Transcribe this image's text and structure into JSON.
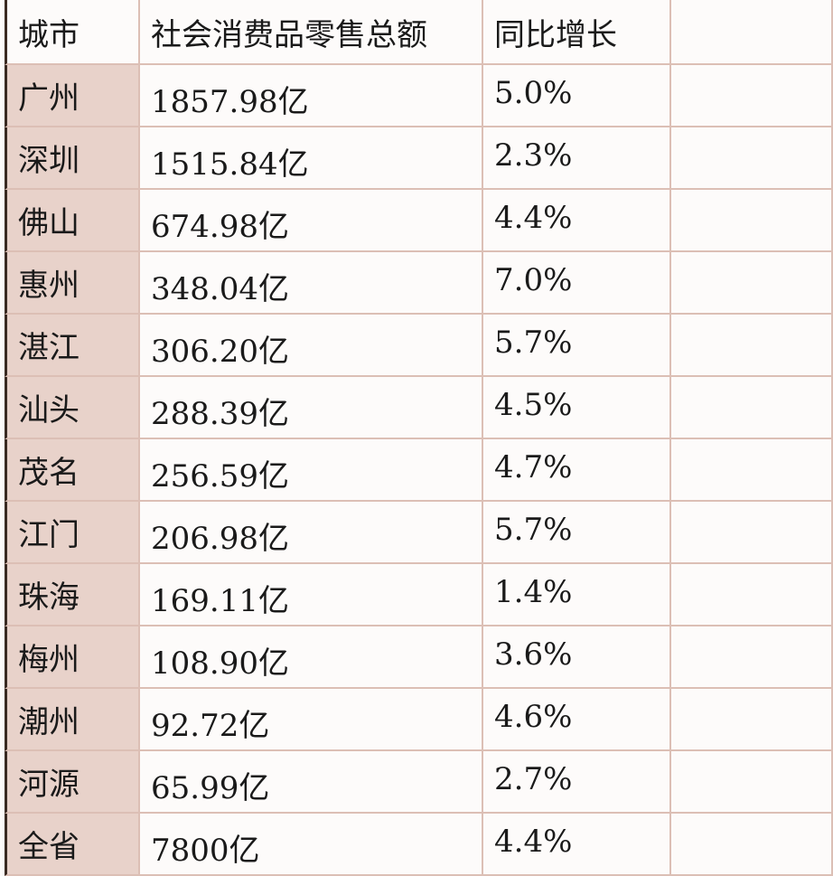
{
  "table": {
    "header": [
      "城市",
      "社会消费品零售总额",
      "同比增长"
    ],
    "rows": [
      [
        "广州",
        "1857.98亿",
        "5.0%"
      ],
      [
        "深圳",
        "1515.84亿",
        "2.3%"
      ],
      [
        "佛山",
        "674.98亿",
        "4.4%"
      ],
      [
        "惠州",
        "348.04亿",
        "7.0%"
      ],
      [
        "湛江",
        "306.20亿",
        "5.7%"
      ],
      [
        "汕头",
        "288.39亿",
        "4.5%"
      ],
      [
        "茂名",
        "256.59亿",
        "4.7%"
      ],
      [
        "江门",
        "206.98亿",
        "5.7%"
      ],
      [
        "珠海",
        "169.11亿",
        "1.4%"
      ],
      [
        "梅州",
        "108.90亿",
        "3.6%"
      ],
      [
        "潮州",
        "92.72亿",
        "4.6%"
      ],
      [
        "河源",
        "65.99亿",
        "2.7%"
      ],
      [
        "全省",
        "7800亿",
        "4.4%"
      ]
    ]
  }
}
